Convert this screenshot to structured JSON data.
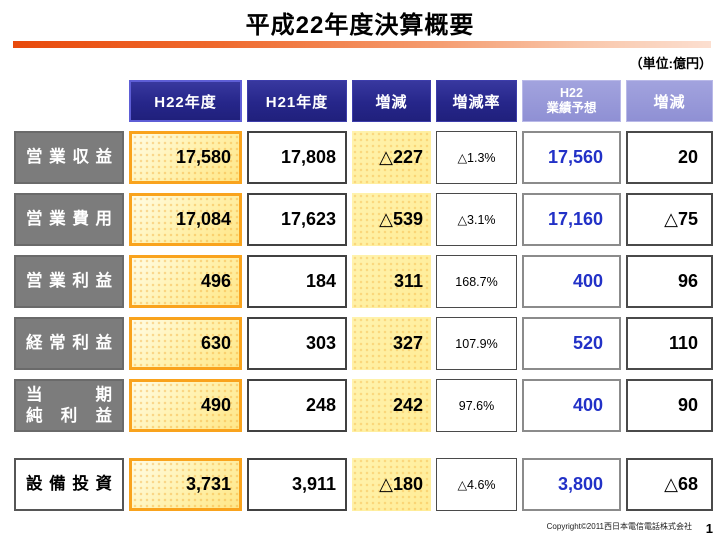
{
  "page": {
    "title": "平成22年度決算概要",
    "unit_label": "（単位:億円）",
    "copyright": "Copyright©2011西日本電信電話株式会社",
    "page_number": "1"
  },
  "colors": {
    "accent_orange": "#e8490b",
    "header_navy": "#26268a",
    "header_periwinkle": "#9091d5",
    "highlight_yellow": "#ffec96",
    "highlight_border_orange": "#f9a31d",
    "forecast_value_blue": "#2231c7",
    "row_label_gray": "#7c7c7c"
  },
  "table": {
    "columns": {
      "c1": "H22年度",
      "c2": "H21年度",
      "c3": "増減",
      "c4": "増減率",
      "c5_line1": "H22",
      "c5_line2": "業績予想",
      "c6": "増減"
    },
    "rows": [
      {
        "label": "営業収益",
        "h22": "17,580",
        "h21": "17,808",
        "change": "△227",
        "change_rate": "△1.3%",
        "forecast": "17,560",
        "forecast_change": "20"
      },
      {
        "label": "営業費用",
        "h22": "17,084",
        "h21": "17,623",
        "change": "△539",
        "change_rate": "△3.1%",
        "forecast": "17,160",
        "forecast_change": "△75"
      },
      {
        "label": "営業利益",
        "h22": "496",
        "h21": "184",
        "change": "311",
        "change_rate": "168.7%",
        "forecast": "400",
        "forecast_change": "96"
      },
      {
        "label": "経常利益",
        "h22": "630",
        "h21": "303",
        "change": "327",
        "change_rate": "107.9%",
        "forecast": "520",
        "forecast_change": "110"
      },
      {
        "label_line1": "当期",
        "label_line2": "純利益",
        "h22": "490",
        "h21": "248",
        "change": "242",
        "change_rate": "97.6%",
        "forecast": "400",
        "forecast_change": "90"
      },
      {
        "label": "設備投資",
        "h22": "3,731",
        "h21": "3,911",
        "change": "△180",
        "change_rate": "△4.6%",
        "forecast": "3,800",
        "forecast_change": "△68"
      }
    ]
  }
}
